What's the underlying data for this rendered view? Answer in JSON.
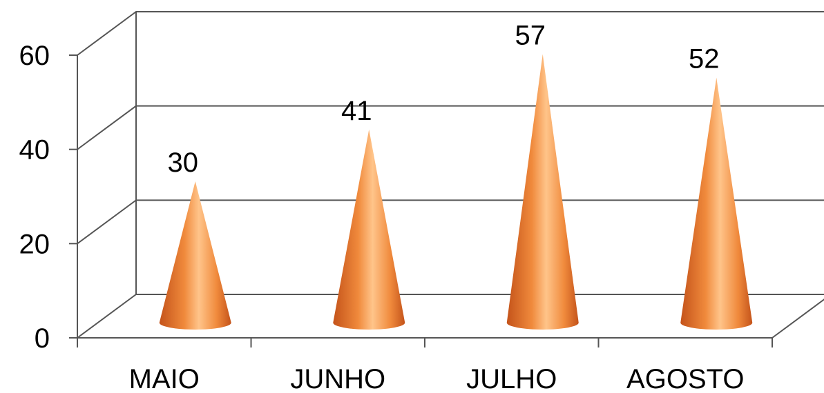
{
  "chart_data": {
    "type": "bar",
    "style": "3d-cone",
    "categories": [
      "MAIO",
      "JUNHO",
      "JULHO",
      "AGOSTO"
    ],
    "values": [
      30,
      41,
      57,
      52
    ],
    "data_labels": [
      "30",
      "41",
      "57",
      "52"
    ],
    "ylim": [
      0,
      60
    ],
    "yticks": [
      0,
      20,
      40,
      60
    ],
    "ytick_labels": [
      "0",
      "20",
      "40",
      "60"
    ],
    "grid": true,
    "legend": "none",
    "colors": {
      "cone_dark": "#c4531a",
      "cone_mid": "#f08a3c",
      "cone_light": "#ffc48a",
      "grid": "#555555"
    }
  }
}
